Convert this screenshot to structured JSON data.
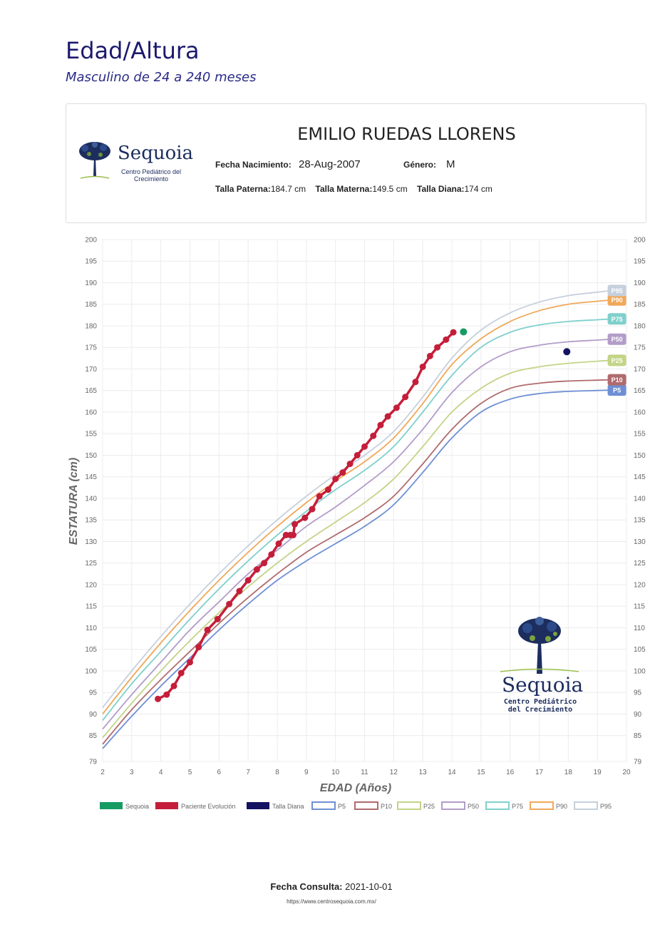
{
  "header": {
    "title": "Edad/Altura",
    "subtitle": "Masculino de 24 a 240 meses"
  },
  "card": {
    "logo_brand": "Sequoia",
    "logo_sub": "Centro Pediátrico del Crecimiento",
    "patient_name": "EMILIO RUEDAS LLORENS",
    "birth_label": "Fecha Nacimiento:",
    "birth_value": "28-Aug-2007",
    "gender_label": "Género:",
    "gender_value": "M",
    "father_label": "Talla Paterna:",
    "father_value": "184.7 cm",
    "mother_label": "Talla Materna:",
    "mother_value": "149.5 cm",
    "target_label": "Talla Diana:",
    "target_value": "174 cm"
  },
  "chart_data": {
    "type": "line",
    "xlabel": "EDAD (Años)",
    "ylabel": "ESTATURA (cm)",
    "xlim": [
      2,
      20
    ],
    "ylim": [
      79,
      200
    ],
    "x_ticks": [
      2,
      3,
      4,
      5,
      6,
      7,
      8,
      9,
      10,
      11,
      12,
      13,
      14,
      15,
      16,
      17,
      18,
      19,
      20
    ],
    "y_ticks": [
      79,
      85,
      90,
      95,
      100,
      105,
      110,
      115,
      120,
      125,
      130,
      135,
      140,
      145,
      150,
      155,
      160,
      165,
      170,
      175,
      180,
      185,
      190,
      195,
      200
    ],
    "grid": true,
    "legend_position": "bottom",
    "percentile_x": [
      2,
      3,
      4,
      5,
      6,
      7,
      8,
      9,
      10,
      11,
      12,
      13,
      14,
      15,
      16,
      17,
      18,
      19,
      19.5
    ],
    "percentiles": [
      {
        "name": "P5",
        "label": "P5",
        "color": "#6f8fd4",
        "values": [
          82,
          89.5,
          96.5,
          103,
          109.5,
          115.5,
          121,
          125.5,
          129.5,
          133.5,
          138.5,
          146,
          154,
          160,
          163,
          164.3,
          164.8,
          165,
          165.1
        ]
      },
      {
        "name": "P10",
        "label": "P10",
        "color": "#b06b6e",
        "values": [
          83,
          91,
          98,
          104.5,
          111,
          117,
          122.5,
          127.5,
          131.5,
          135.5,
          140.5,
          148,
          156,
          162,
          165.5,
          166.7,
          167.2,
          167.4,
          167.5
        ]
      },
      {
        "name": "P25",
        "label": "P25",
        "color": "#c3d487",
        "values": [
          84.5,
          92.5,
          100,
          107,
          113.5,
          119.5,
          125,
          130,
          134.5,
          139,
          144.5,
          152,
          160,
          165.5,
          169,
          170.5,
          171.3,
          171.8,
          172
        ]
      },
      {
        "name": "P50",
        "label": "P50",
        "color": "#b39cc9",
        "values": [
          86.5,
          94.5,
          102,
          109.5,
          116,
          122.5,
          128,
          133.5,
          138,
          143,
          148.5,
          156,
          164.5,
          170.5,
          174,
          175.5,
          176.3,
          176.7,
          176.9
        ]
      },
      {
        "name": "P75",
        "label": "P75",
        "color": "#7fd0cc",
        "values": [
          88.5,
          97,
          104.5,
          112,
          119,
          125.5,
          131.5,
          137,
          142,
          146.5,
          152,
          160,
          168.5,
          175,
          178.5,
          180.2,
          181,
          181.4,
          181.6
        ]
      },
      {
        "name": "P90",
        "label": "P90",
        "color": "#f0a85a",
        "values": [
          90,
          98.5,
          106.5,
          114,
          121,
          127.5,
          133.5,
          139,
          144,
          148.5,
          154,
          162,
          171,
          177,
          181,
          183.5,
          185,
          185.7,
          186
        ]
      },
      {
        "name": "P95",
        "label": "P95",
        "color": "#c6d0dd",
        "values": [
          91.5,
          100,
          108,
          115.5,
          122.5,
          129,
          135,
          140.5,
          145.5,
          150,
          155.5,
          163.5,
          172.5,
          179,
          183,
          185.5,
          187,
          187.8,
          188.2
        ]
      }
    ],
    "patient": {
      "name": "Paciente Evolución",
      "color": "#c41e3a",
      "x": [
        3.9,
        4.2,
        4.45,
        4.7,
        5.0,
        5.3,
        5.6,
        5.95,
        6.35,
        6.7,
        7.0,
        7.3,
        7.55,
        7.8,
        8.05,
        8.3,
        8.45,
        8.55,
        8.6,
        8.95,
        9.2,
        9.45,
        9.75,
        10.0,
        10.25,
        10.5,
        10.75,
        11.0,
        11.3,
        11.55,
        11.8,
        12.1,
        12.4,
        12.75,
        13.0,
        13.25,
        13.5,
        13.8,
        14.05
      ],
      "y": [
        93.5,
        94.5,
        96.5,
        99.5,
        102,
        105.5,
        109.5,
        112,
        115.5,
        118.5,
        121,
        123.5,
        125,
        127,
        129.5,
        131.5,
        131.5,
        131.5,
        134,
        135.5,
        137.5,
        140.5,
        142,
        144.5,
        146,
        148,
        150,
        152,
        154.5,
        157,
        159,
        161,
        163.5,
        167,
        170.5,
        173,
        175,
        176.8,
        178.5
      ]
    },
    "sequoia": {
      "name": "Sequoia",
      "color": "#169b62",
      "x": 14.4,
      "y": 178.6
    },
    "target": {
      "name": "Talla Diana",
      "color": "#131362",
      "x": 17.95,
      "y": 174
    },
    "legend": [
      {
        "name": "Sequoia",
        "color": "#169b62",
        "filled": true
      },
      {
        "name": "Paciente Evolución",
        "color": "#c41e3a",
        "filled": true
      },
      {
        "name": "Talla Diana",
        "color": "#131362",
        "filled": true
      },
      {
        "name": "P5",
        "color": "#6f8fd4",
        "filled": false
      },
      {
        "name": "P10",
        "color": "#b06b6e",
        "filled": false
      },
      {
        "name": "P25",
        "color": "#c3d487",
        "filled": false
      },
      {
        "name": "P50",
        "color": "#b39cc9",
        "filled": false
      },
      {
        "name": "P75",
        "color": "#7fd0cc",
        "filled": false
      },
      {
        "name": "P90",
        "color": "#f0a85a",
        "filled": false
      },
      {
        "name": "P95",
        "color": "#c6d0dd",
        "filled": false
      }
    ],
    "watermark_brand": "Sequoia",
    "watermark_sub_1": "Centro Pediátrico",
    "watermark_sub_2": "del Crecimiento"
  },
  "footer": {
    "consult_label": "Fecha Consulta:",
    "consult_value": "2021-10-01",
    "url": "https://www.centrosequoia.com.mx/"
  }
}
